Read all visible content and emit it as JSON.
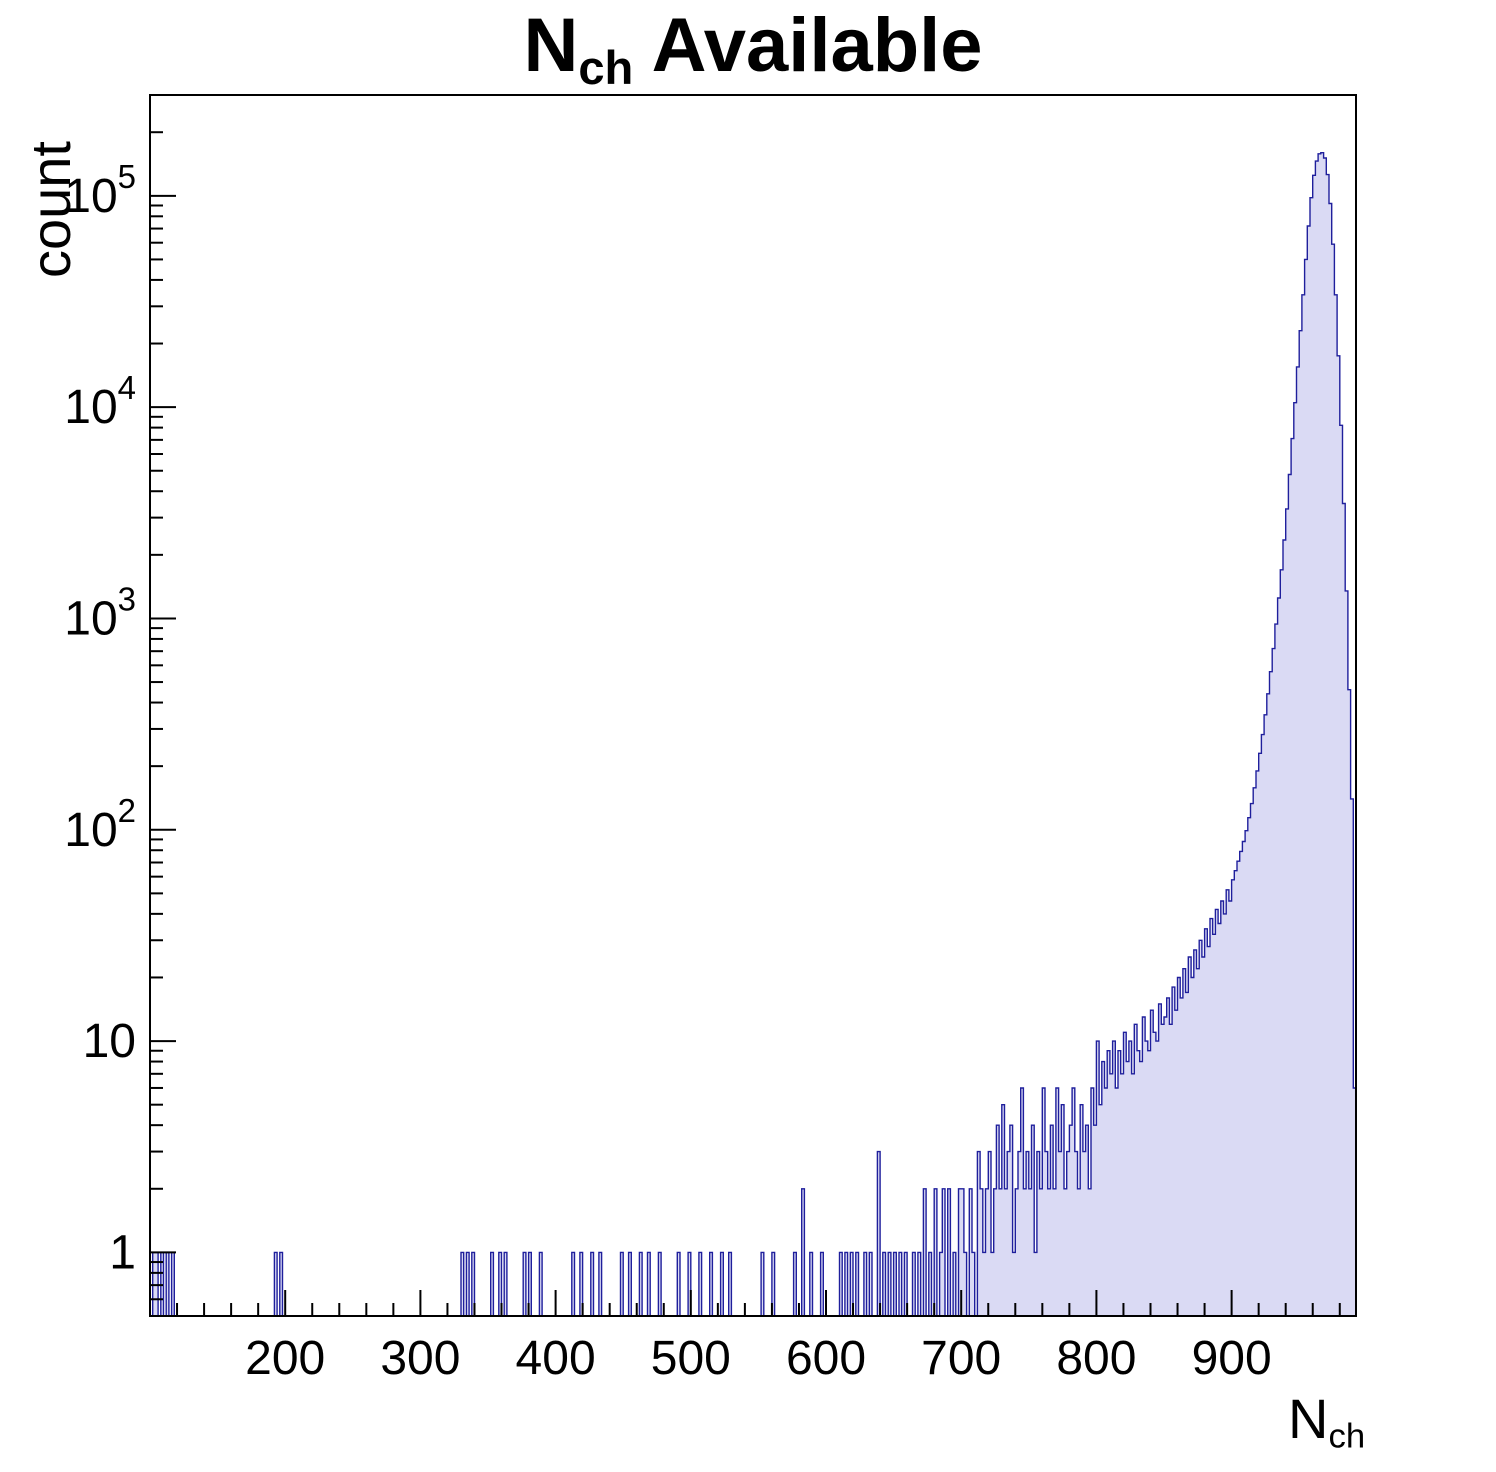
{
  "title": {
    "main": "N",
    "sub": "ch",
    "rest": " Available"
  },
  "axes": {
    "y_label": "count",
    "x_label_main": "N",
    "x_label_sub": "ch"
  },
  "chart_data": {
    "type": "bar",
    "title": "N_ch Available",
    "xlabel": "N_ch",
    "ylabel": "count",
    "x_scale": "linear",
    "y_scale": "log",
    "xlim": [
      100,
      992
    ],
    "ylim": [
      0.5,
      300000
    ],
    "grid": false,
    "legend": "none",
    "bin_width": 2,
    "x_ticks": [
      200,
      300,
      400,
      500,
      600,
      700,
      800,
      900
    ],
    "x_minor_step": 20,
    "y_ticks": [
      {
        "value": 1,
        "label": "1"
      },
      {
        "value": 10,
        "label": "10"
      },
      {
        "value": 100,
        "label": "10",
        "exp": "2"
      },
      {
        "value": 1000,
        "label": "10",
        "exp": "3"
      },
      {
        "value": 10000,
        "label": "10",
        "exp": "4"
      },
      {
        "value": 100000,
        "label": "10",
        "exp": "5"
      }
    ],
    "style": {
      "fill": "#dadaf4",
      "stroke": "#1f1f9c",
      "frame": "#000000"
    },
    "bins": [
      [
        102,
        1
      ],
      [
        104,
        1
      ],
      [
        108,
        1
      ],
      [
        112,
        1
      ],
      [
        116,
        1
      ],
      [
        192,
        1
      ],
      [
        196,
        1
      ],
      [
        330,
        1
      ],
      [
        334,
        1
      ],
      [
        338,
        1
      ],
      [
        352,
        1
      ],
      [
        358,
        1
      ],
      [
        362,
        1
      ],
      [
        376,
        1
      ],
      [
        380,
        1
      ],
      [
        388,
        1
      ],
      [
        412,
        1
      ],
      [
        418,
        1
      ],
      [
        426,
        1
      ],
      [
        432,
        1
      ],
      [
        448,
        1
      ],
      [
        454,
        1
      ],
      [
        462,
        1
      ],
      [
        468,
        1
      ],
      [
        476,
        1
      ],
      [
        490,
        1
      ],
      [
        498,
        1
      ],
      [
        506,
        1
      ],
      [
        514,
        1
      ],
      [
        522,
        1
      ],
      [
        528,
        1
      ],
      [
        552,
        1
      ],
      [
        560,
        1
      ],
      [
        576,
        1
      ],
      [
        582,
        2
      ],
      [
        588,
        1
      ],
      [
        596,
        1
      ],
      [
        610,
        1
      ],
      [
        614,
        1
      ],
      [
        618,
        1
      ],
      [
        622,
        1
      ],
      [
        628,
        1
      ],
      [
        632,
        1
      ],
      [
        638,
        3
      ],
      [
        642,
        1
      ],
      [
        646,
        1
      ],
      [
        650,
        1
      ],
      [
        654,
        1
      ],
      [
        658,
        1
      ],
      [
        664,
        1
      ],
      [
        668,
        1
      ],
      [
        672,
        2
      ],
      [
        676,
        1
      ],
      [
        680,
        2
      ],
      [
        684,
        1
      ],
      [
        686,
        2
      ],
      [
        690,
        2
      ],
      [
        694,
        1
      ],
      [
        698,
        2
      ],
      [
        700,
        2
      ],
      [
        702,
        1
      ],
      [
        706,
        2
      ],
      [
        708,
        1
      ],
      [
        712,
        3
      ],
      [
        714,
        2
      ],
      [
        716,
        1
      ],
      [
        718,
        2
      ],
      [
        720,
        3
      ],
      [
        722,
        1
      ],
      [
        724,
        2
      ],
      [
        726,
        4
      ],
      [
        728,
        2
      ],
      [
        730,
        5
      ],
      [
        732,
        2
      ],
      [
        734,
        3
      ],
      [
        736,
        4
      ],
      [
        738,
        1
      ],
      [
        740,
        2
      ],
      [
        742,
        3
      ],
      [
        744,
        6
      ],
      [
        746,
        2
      ],
      [
        748,
        3
      ],
      [
        750,
        2
      ],
      [
        752,
        4
      ],
      [
        754,
        1
      ],
      [
        756,
        3
      ],
      [
        758,
        2
      ],
      [
        760,
        6
      ],
      [
        762,
        3
      ],
      [
        764,
        2
      ],
      [
        766,
        4
      ],
      [
        768,
        2
      ],
      [
        770,
        6
      ],
      [
        772,
        3
      ],
      [
        774,
        5
      ],
      [
        776,
        2
      ],
      [
        778,
        3
      ],
      [
        780,
        4
      ],
      [
        782,
        6
      ],
      [
        784,
        3
      ],
      [
        786,
        2
      ],
      [
        788,
        5
      ],
      [
        790,
        3
      ],
      [
        792,
        4
      ],
      [
        794,
        2
      ],
      [
        796,
        6
      ],
      [
        798,
        4
      ],
      [
        800,
        10
      ],
      [
        802,
        5
      ],
      [
        804,
        8
      ],
      [
        806,
        6
      ],
      [
        808,
        9
      ],
      [
        810,
        7
      ],
      [
        812,
        10
      ],
      [
        814,
        6
      ],
      [
        816,
        9
      ],
      [
        818,
        7
      ],
      [
        820,
        11
      ],
      [
        822,
        8
      ],
      [
        824,
        10
      ],
      [
        826,
        7
      ],
      [
        828,
        12
      ],
      [
        830,
        9
      ],
      [
        832,
        8
      ],
      [
        834,
        13
      ],
      [
        836,
        10
      ],
      [
        838,
        9
      ],
      [
        840,
        14
      ],
      [
        842,
        11
      ],
      [
        844,
        10
      ],
      [
        846,
        15
      ],
      [
        848,
        12
      ],
      [
        850,
        13
      ],
      [
        852,
        16
      ],
      [
        854,
        12
      ],
      [
        856,
        18
      ],
      [
        858,
        14
      ],
      [
        860,
        20
      ],
      [
        862,
        16
      ],
      [
        864,
        22
      ],
      [
        866,
        17
      ],
      [
        868,
        25
      ],
      [
        870,
        20
      ],
      [
        872,
        27
      ],
      [
        874,
        22
      ],
      [
        876,
        30
      ],
      [
        878,
        25
      ],
      [
        880,
        34
      ],
      [
        882,
        28
      ],
      [
        884,
        38
      ],
      [
        886,
        32
      ],
      [
        888,
        42
      ],
      [
        890,
        36
      ],
      [
        892,
        46
      ],
      [
        894,
        40
      ],
      [
        896,
        52
      ],
      [
        898,
        46
      ],
      [
        900,
        58
      ],
      [
        902,
        64
      ],
      [
        904,
        71
      ],
      [
        906,
        79
      ],
      [
        908,
        88
      ],
      [
        910,
        99
      ],
      [
        912,
        114
      ],
      [
        914,
        133
      ],
      [
        916,
        158
      ],
      [
        918,
        190
      ],
      [
        920,
        230
      ],
      [
        922,
        282
      ],
      [
        924,
        350
      ],
      [
        926,
        440
      ],
      [
        928,
        560
      ],
      [
        930,
        720
      ],
      [
        932,
        940
      ],
      [
        934,
        1250
      ],
      [
        936,
        1700
      ],
      [
        938,
        2350
      ],
      [
        940,
        3300
      ],
      [
        942,
        4800
      ],
      [
        944,
        7100
      ],
      [
        946,
        10500
      ],
      [
        948,
        15500
      ],
      [
        950,
        23000
      ],
      [
        952,
        34000
      ],
      [
        954,
        50000
      ],
      [
        956,
        72000
      ],
      [
        958,
        98000
      ],
      [
        960,
        125000
      ],
      [
        962,
        146000
      ],
      [
        964,
        158000
      ],
      [
        966,
        160000
      ],
      [
        968,
        151000
      ],
      [
        970,
        126000
      ],
      [
        972,
        92000
      ],
      [
        974,
        59000
      ],
      [
        976,
        34000
      ],
      [
        978,
        17500
      ],
      [
        980,
        8200
      ],
      [
        982,
        3500
      ],
      [
        984,
        1350
      ],
      [
        986,
        460
      ],
      [
        988,
        140
      ],
      [
        990,
        6
      ]
    ]
  }
}
